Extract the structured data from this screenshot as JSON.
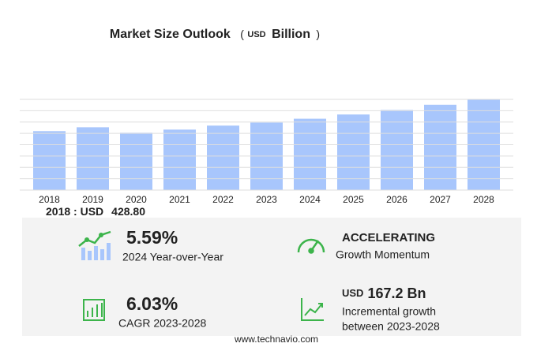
{
  "chart_data": {
    "type": "bar",
    "title": "Market Size Outlook",
    "unit_parts": [
      "(",
      "USD",
      "Billion",
      ")"
    ],
    "categories": [
      "2018",
      "2019",
      "2020",
      "2021",
      "2022",
      "2023",
      "2024",
      "2025",
      "2026",
      "2027",
      "2028"
    ],
    "values": [
      428.8,
      457,
      417,
      440,
      469,
      491.5,
      519,
      550,
      583,
      621,
      658.7
    ],
    "color": "#a8c6fc",
    "ylim": [
      0,
      660
    ],
    "highlight": {
      "label": "2018 : USD",
      "value": "428.80"
    }
  },
  "stats": [
    {
      "value": "5.59%",
      "label": "2024 Year-over-Year"
    },
    {
      "value": "ACCELERATING",
      "label": "Growth Momentum"
    },
    {
      "value": "6.03%",
      "label": "CAGR 2023-2028"
    },
    {
      "unit": "USD",
      "value": "167.2 Bn",
      "label_lines": [
        "Incremental growth",
        "between 2023-2028"
      ]
    }
  ],
  "footer": "www.technavio.com"
}
